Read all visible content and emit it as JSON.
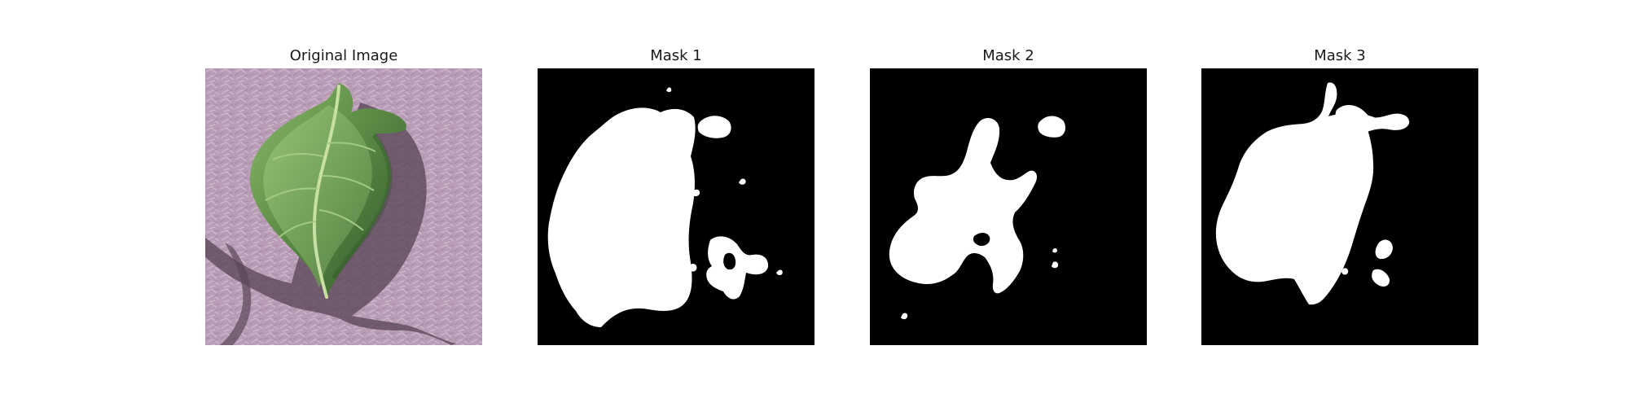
{
  "figure": {
    "panels": [
      {
        "title": "Original Image",
        "kind": "photo",
        "subject": "leaf-photo"
      },
      {
        "title": "Mask 1",
        "kind": "mask",
        "subject": "binary-mask"
      },
      {
        "title": "Mask 2",
        "kind": "mask",
        "subject": "binary-mask"
      },
      {
        "title": "Mask 3",
        "kind": "mask",
        "subject": "binary-mask"
      }
    ]
  },
  "colors": {
    "background": "#ffffff",
    "mask_background": "#000000",
    "mask_foreground": "#ffffff",
    "leaf_green": "#6f9d55",
    "leaf_dark": "#355f2f",
    "stem": "#9fc37a",
    "surface": "#b99db7",
    "shadow": "#5a4658"
  }
}
